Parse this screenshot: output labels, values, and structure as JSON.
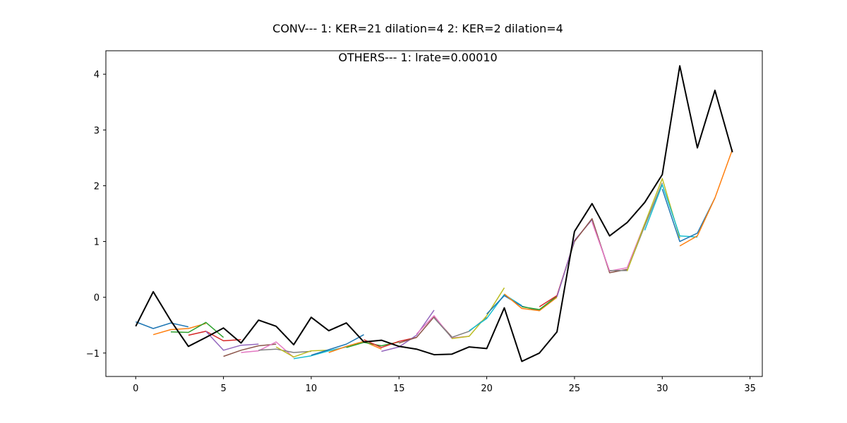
{
  "chart_data": {
    "type": "line",
    "title": "CONV--- 1: KER=21   dilation=4   2: KER=2   dilation=4",
    "subtitle": "OTHERS--- 1: lrate=0.00010",
    "xlabel": "",
    "ylabel": "",
    "xlim": [
      -1.7,
      35.7
    ],
    "ylim": [
      -1.42,
      4.42
    ],
    "xticks": [
      0,
      5,
      10,
      15,
      20,
      25,
      30,
      35
    ],
    "yticks": [
      -1,
      0,
      1,
      2,
      3,
      4
    ],
    "grid": false,
    "actual": {
      "color": "#000000",
      "x": [
        0,
        1,
        2,
        3,
        4,
        5,
        6,
        7,
        8,
        9,
        10,
        11,
        12,
        13,
        14,
        15,
        16,
        17,
        18,
        19,
        20,
        21,
        22,
        23,
        24,
        25,
        26,
        27,
        28,
        29,
        30,
        31,
        32,
        33,
        34
      ],
      "y": [
        -0.52,
        0.1,
        -0.42,
        -0.88,
        -0.72,
        -0.55,
        -0.82,
        -0.41,
        -0.52,
        -0.85,
        -0.36,
        -0.6,
        -0.46,
        -0.8,
        -0.77,
        -0.88,
        -0.93,
        -1.03,
        -1.02,
        -0.89,
        -0.92,
        -0.19,
        -1.15,
        -1.0,
        -0.62,
        1.18,
        1.68,
        1.1,
        1.34,
        1.7,
        2.2,
        4.15,
        2.68,
        3.71,
        2.6
      ]
    },
    "series": [
      {
        "color": "#1f77b4",
        "x": [
          0,
          1,
          2,
          3
        ],
        "values": [
          -0.44,
          -0.56,
          -0.46,
          -0.53
        ]
      },
      {
        "color": "#ff7f0e",
        "x": [
          1,
          2,
          3,
          4
        ],
        "values": [
          -0.67,
          -0.58,
          -0.56,
          -0.47
        ]
      },
      {
        "color": "#2ca02c",
        "x": [
          2,
          3,
          4,
          5
        ],
        "values": [
          -0.62,
          -0.63,
          -0.45,
          -0.72
        ]
      },
      {
        "color": "#d62728",
        "x": [
          3,
          4,
          5,
          6
        ],
        "values": [
          -0.68,
          -0.61,
          -0.78,
          -0.76
        ]
      },
      {
        "color": "#9467bd",
        "x": [
          4,
          5,
          6,
          7
        ],
        "values": [
          -0.61,
          -0.95,
          -0.86,
          -0.84
        ]
      },
      {
        "color": "#8c564b",
        "x": [
          5,
          6,
          7,
          8
        ],
        "values": [
          -1.06,
          -0.95,
          -0.87,
          -0.84
        ]
      },
      {
        "color": "#e377c2",
        "x": [
          6,
          7,
          8,
          9
        ],
        "values": [
          -0.99,
          -0.96,
          -0.8,
          -1.08
        ]
      },
      {
        "color": "#7f7f7f",
        "x": [
          7,
          8,
          9,
          10
        ],
        "values": [
          -0.95,
          -0.93,
          -0.99,
          -0.97
        ]
      },
      {
        "color": "#bcbd22",
        "x": [
          8,
          9,
          10,
          11
        ],
        "values": [
          -0.89,
          -1.07,
          -0.96,
          -0.95
        ]
      },
      {
        "color": "#17becf",
        "x": [
          9,
          10,
          11,
          12
        ],
        "values": [
          -1.1,
          -1.05,
          -0.96,
          -0.89
        ]
      },
      {
        "color": "#1f77b4",
        "x": [
          10,
          11,
          12,
          13
        ],
        "values": [
          -1.04,
          -0.94,
          -0.84,
          -0.67
        ]
      },
      {
        "color": "#ff7f0e",
        "x": [
          11,
          12,
          13,
          14
        ],
        "values": [
          -0.99,
          -0.88,
          -0.79,
          -0.93
        ]
      },
      {
        "color": "#2ca02c",
        "x": [
          12,
          13,
          14,
          15
        ],
        "values": [
          -0.9,
          -0.81,
          -0.87,
          -0.8
        ]
      },
      {
        "color": "#d62728",
        "x": [
          13,
          14,
          15,
          16
        ],
        "values": [
          -0.76,
          -0.9,
          -0.79,
          -0.72
        ]
      },
      {
        "color": "#9467bd",
        "x": [
          14,
          15,
          16,
          17
        ],
        "values": [
          -0.97,
          -0.89,
          -0.68,
          -0.23
        ]
      },
      {
        "color": "#8c564b",
        "x": [
          15,
          16,
          17,
          18
        ],
        "values": [
          -0.82,
          -0.72,
          -0.35,
          -0.71
        ]
      },
      {
        "color": "#e377c2",
        "x": [
          16,
          17,
          18,
          19
        ],
        "values": [
          -0.66,
          -0.33,
          -0.73,
          -0.7
        ]
      },
      {
        "color": "#7f7f7f",
        "x": [
          17,
          18,
          19,
          20
        ],
        "values": [
          -0.37,
          -0.72,
          -0.61,
          -0.36
        ]
      },
      {
        "color": "#bcbd22",
        "x": [
          18,
          19,
          20,
          21
        ],
        "values": [
          -0.74,
          -0.7,
          -0.33,
          0.17
        ]
      },
      {
        "color": "#17becf",
        "x": [
          19,
          20,
          21,
          22
        ],
        "values": [
          -0.6,
          -0.38,
          0.05,
          -0.15
        ]
      },
      {
        "color": "#1f77b4",
        "x": [
          20,
          21,
          22,
          23
        ],
        "values": [
          -0.3,
          0.03,
          -0.16,
          -0.24
        ]
      },
      {
        "color": "#ff7f0e",
        "x": [
          21,
          22,
          23,
          24
        ],
        "values": [
          0.06,
          -0.2,
          -0.24,
          0.0
        ]
      },
      {
        "color": "#2ca02c",
        "x": [
          22,
          23,
          24,
          25
        ],
        "values": [
          -0.17,
          -0.22,
          0.02,
          1.0
        ]
      },
      {
        "color": "#d62728",
        "x": [
          23,
          24,
          25,
          26
        ],
        "values": [
          -0.17,
          0.03,
          1.01,
          1.4
        ]
      },
      {
        "color": "#9467bd",
        "x": [
          24,
          25,
          26,
          27
        ],
        "values": [
          0.01,
          1.02,
          1.39,
          0.46
        ]
      },
      {
        "color": "#8c564b",
        "x": [
          25,
          26,
          27,
          28
        ],
        "values": [
          1.0,
          1.41,
          0.44,
          0.5
        ]
      },
      {
        "color": "#e377c2",
        "x": [
          26,
          27,
          28,
          29
        ],
        "values": [
          1.35,
          0.47,
          0.53,
          1.32
        ]
      },
      {
        "color": "#7f7f7f",
        "x": [
          27,
          28,
          29,
          30
        ],
        "values": [
          0.48,
          0.48,
          1.28,
          2.05
        ]
      },
      {
        "color": "#bcbd22",
        "x": [
          28,
          29,
          30,
          31
        ],
        "values": [
          0.47,
          1.32,
          2.13,
          1.06
        ]
      },
      {
        "color": "#17becf",
        "x": [
          29,
          30,
          31,
          32
        ],
        "values": [
          1.2,
          2.02,
          1.1,
          1.08
        ]
      },
      {
        "color": "#1f77b4",
        "x": [
          30,
          31,
          32,
          33
        ],
        "values": [
          1.94,
          1.0,
          1.15,
          1.78
        ]
      },
      {
        "color": "#ff7f0e",
        "x": [
          31,
          32,
          33,
          34
        ],
        "values": [
          0.92,
          1.1,
          1.78,
          2.65
        ]
      }
    ]
  }
}
